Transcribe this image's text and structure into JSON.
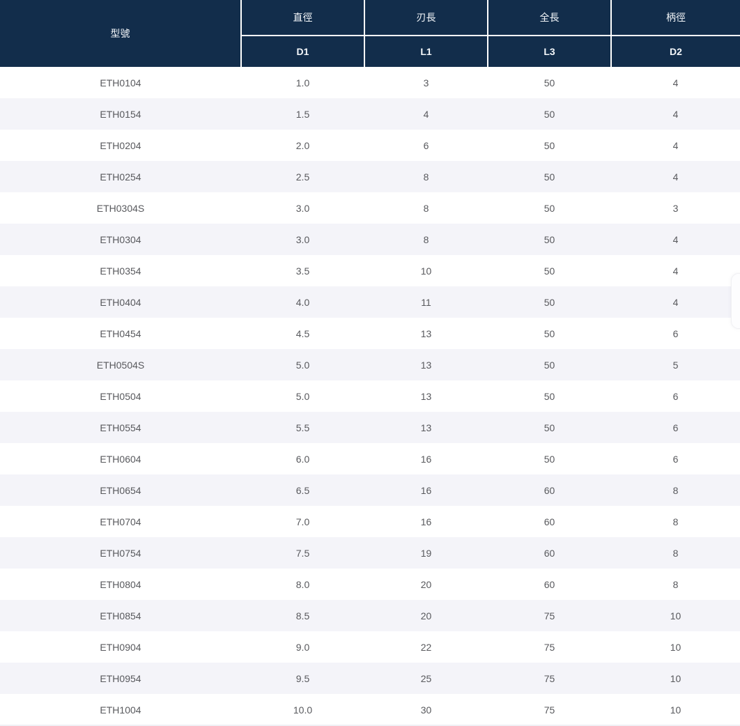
{
  "colors": {
    "header_bg": "#122d4b",
    "header_text": "#f4f7fa",
    "stripe_bg": "#f4f4f9",
    "row_bg": "#ffffff",
    "data_text": "#58595d",
    "header_border": "#ffffff"
  },
  "table": {
    "columns": [
      {
        "label": "型號",
        "sub": ""
      },
      {
        "label": "直徑",
        "sub": "D1"
      },
      {
        "label": "刃長",
        "sub": "L1"
      },
      {
        "label": "全長",
        "sub": "L3"
      },
      {
        "label": "柄徑",
        "sub": "D2"
      }
    ],
    "rows": [
      [
        "ETH0104",
        "1.0",
        "3",
        "50",
        "4"
      ],
      [
        "ETH0154",
        "1.5",
        "4",
        "50",
        "4"
      ],
      [
        "ETH0204",
        "2.0",
        "6",
        "50",
        "4"
      ],
      [
        "ETH0254",
        "2.5",
        "8",
        "50",
        "4"
      ],
      [
        "ETH0304S",
        "3.0",
        "8",
        "50",
        "3"
      ],
      [
        "ETH0304",
        "3.0",
        "8",
        "50",
        "4"
      ],
      [
        "ETH0354",
        "3.5",
        "10",
        "50",
        "4"
      ],
      [
        "ETH0404",
        "4.0",
        "11",
        "50",
        "4"
      ],
      [
        "ETH0454",
        "4.5",
        "13",
        "50",
        "6"
      ],
      [
        "ETH0504S",
        "5.0",
        "13",
        "50",
        "5"
      ],
      [
        "ETH0504",
        "5.0",
        "13",
        "50",
        "6"
      ],
      [
        "ETH0554",
        "5.5",
        "13",
        "50",
        "6"
      ],
      [
        "ETH0604",
        "6.0",
        "16",
        "50",
        "6"
      ],
      [
        "ETH0654",
        "6.5",
        "16",
        "60",
        "8"
      ],
      [
        "ETH0704",
        "7.0",
        "16",
        "60",
        "8"
      ],
      [
        "ETH0754",
        "7.5",
        "19",
        "60",
        "8"
      ],
      [
        "ETH0804",
        "8.0",
        "20",
        "60",
        "8"
      ],
      [
        "ETH0854",
        "8.5",
        "20",
        "75",
        "10"
      ],
      [
        "ETH0904",
        "9.0",
        "22",
        "75",
        "10"
      ],
      [
        "ETH0954",
        "9.5",
        "25",
        "75",
        "10"
      ],
      [
        "ETH1004",
        "10.0",
        "30",
        "75",
        "10"
      ]
    ]
  }
}
